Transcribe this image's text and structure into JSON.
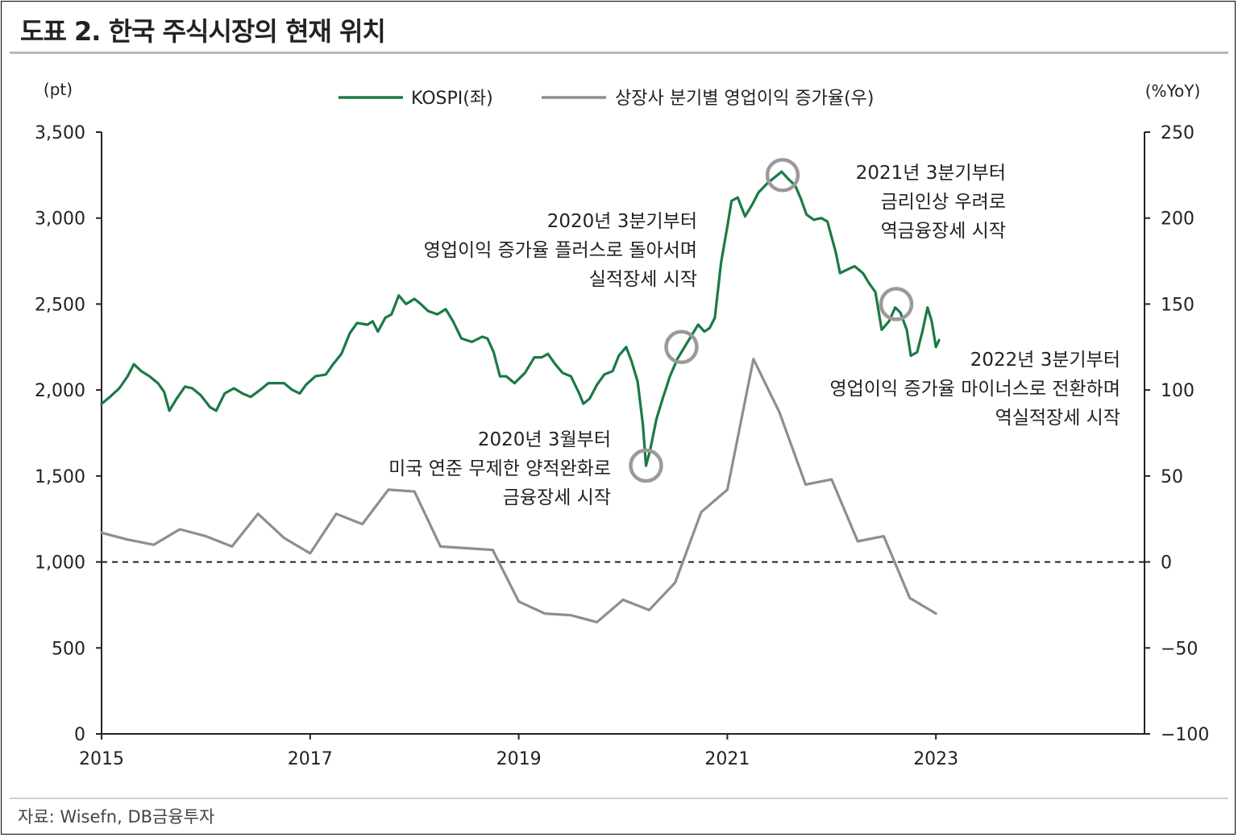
{
  "title": "도표 2. 한국 주식시장의 현재 위치",
  "source": "자료: Wisefn, DB금융투자",
  "colors": {
    "kospi": "#1a7a45",
    "earnings": "#8e8e8e",
    "circle": "#9a9a9a",
    "zero_line": "#222222"
  },
  "chart_data": {
    "type": "line",
    "left_axis": {
      "unit": "(pt)",
      "ylim": [
        0,
        3500
      ],
      "ticks": [
        0,
        500,
        1000,
        1500,
        2000,
        2500,
        3000,
        3500
      ],
      "tick_labels": [
        "0",
        "500",
        "1,000",
        "1,500",
        "2,000",
        "2,500",
        "3,000",
        "3,500"
      ]
    },
    "right_axis": {
      "unit": "(%YoY)",
      "ylim": [
        -100,
        250
      ],
      "ticks": [
        -100,
        -50,
        0,
        50,
        100,
        150,
        200,
        250
      ],
      "tick_labels": [
        "−100",
        "−50",
        "0",
        "50",
        "100",
        "150",
        "200",
        "250"
      ]
    },
    "x_axis": {
      "xlim": [
        2015,
        2025
      ],
      "ticks": [
        2015,
        2017,
        2019,
        2021,
        2023
      ],
      "tick_labels": [
        "2015",
        "2017",
        "2019",
        "2021",
        "2023"
      ]
    },
    "legend": {
      "placement": "top-center",
      "items": [
        "KOSPI(좌)",
        "상장사 분기별 영업이익 증가율(우)"
      ]
    },
    "series": [
      {
        "name": "KOSPI(좌)",
        "axis": "left",
        "points": [
          [
            2015.0,
            1920
          ],
          [
            2015.08,
            1960
          ],
          [
            2015.17,
            2010
          ],
          [
            2015.25,
            2080
          ],
          [
            2015.31,
            2150
          ],
          [
            2015.38,
            2110
          ],
          [
            2015.46,
            2080
          ],
          [
            2015.54,
            2040
          ],
          [
            2015.6,
            1990
          ],
          [
            2015.65,
            1880
          ],
          [
            2015.72,
            1950
          ],
          [
            2015.8,
            2020
          ],
          [
            2015.87,
            2010
          ],
          [
            2015.95,
            1970
          ],
          [
            2016.04,
            1900
          ],
          [
            2016.1,
            1880
          ],
          [
            2016.18,
            1980
          ],
          [
            2016.27,
            2010
          ],
          [
            2016.35,
            1980
          ],
          [
            2016.43,
            1960
          ],
          [
            2016.52,
            2000
          ],
          [
            2016.6,
            2040
          ],
          [
            2016.68,
            2040
          ],
          [
            2016.75,
            2040
          ],
          [
            2016.83,
            2000
          ],
          [
            2016.9,
            1980
          ],
          [
            2016.96,
            2030
          ],
          [
            2017.05,
            2080
          ],
          [
            2017.15,
            2090
          ],
          [
            2017.22,
            2150
          ],
          [
            2017.3,
            2210
          ],
          [
            2017.38,
            2330
          ],
          [
            2017.45,
            2390
          ],
          [
            2017.55,
            2380
          ],
          [
            2017.6,
            2400
          ],
          [
            2017.65,
            2340
          ],
          [
            2017.72,
            2420
          ],
          [
            2017.78,
            2440
          ],
          [
            2017.85,
            2550
          ],
          [
            2017.92,
            2500
          ],
          [
            2018.0,
            2530
          ],
          [
            2018.06,
            2500
          ],
          [
            2018.13,
            2460
          ],
          [
            2018.22,
            2440
          ],
          [
            2018.3,
            2470
          ],
          [
            2018.37,
            2400
          ],
          [
            2018.45,
            2300
          ],
          [
            2018.55,
            2280
          ],
          [
            2018.65,
            2310
          ],
          [
            2018.7,
            2300
          ],
          [
            2018.76,
            2220
          ],
          [
            2018.82,
            2080
          ],
          [
            2018.88,
            2080
          ],
          [
            2018.96,
            2040
          ],
          [
            2019.06,
            2100
          ],
          [
            2019.15,
            2190
          ],
          [
            2019.22,
            2190
          ],
          [
            2019.28,
            2210
          ],
          [
            2019.35,
            2150
          ],
          [
            2019.42,
            2100
          ],
          [
            2019.5,
            2080
          ],
          [
            2019.58,
            1980
          ],
          [
            2019.62,
            1920
          ],
          [
            2019.68,
            1950
          ],
          [
            2019.75,
            2030
          ],
          [
            2019.82,
            2090
          ],
          [
            2019.9,
            2110
          ],
          [
            2019.96,
            2200
          ],
          [
            2020.03,
            2250
          ],
          [
            2020.08,
            2170
          ],
          [
            2020.14,
            2050
          ],
          [
            2020.19,
            1800
          ],
          [
            2020.22,
            1560
          ],
          [
            2020.26,
            1650
          ],
          [
            2020.32,
            1830
          ],
          [
            2020.38,
            1950
          ],
          [
            2020.45,
            2080
          ],
          [
            2020.52,
            2180
          ],
          [
            2020.6,
            2260
          ],
          [
            2020.66,
            2320
          ],
          [
            2020.72,
            2380
          ],
          [
            2020.78,
            2340
          ],
          [
            2020.83,
            2360
          ],
          [
            2020.88,
            2420
          ],
          [
            2020.94,
            2740
          ],
          [
            2021.0,
            2950
          ],
          [
            2021.04,
            3100
          ],
          [
            2021.1,
            3120
          ],
          [
            2021.17,
            3010
          ],
          [
            2021.24,
            3080
          ],
          [
            2021.3,
            3150
          ],
          [
            2021.38,
            3200
          ],
          [
            2021.44,
            3230
          ],
          [
            2021.52,
            3270
          ],
          [
            2021.58,
            3230
          ],
          [
            2021.65,
            3190
          ],
          [
            2021.7,
            3120
          ],
          [
            2021.76,
            3020
          ],
          [
            2021.83,
            2990
          ],
          [
            2021.9,
            3000
          ],
          [
            2021.96,
            2980
          ],
          [
            2022.04,
            2800
          ],
          [
            2022.08,
            2680
          ],
          [
            2022.15,
            2700
          ],
          [
            2022.22,
            2720
          ],
          [
            2022.3,
            2680
          ],
          [
            2022.36,
            2620
          ],
          [
            2022.42,
            2570
          ],
          [
            2022.48,
            2350
          ],
          [
            2022.55,
            2400
          ],
          [
            2022.61,
            2480
          ],
          [
            2022.66,
            2450
          ],
          [
            2022.72,
            2350
          ],
          [
            2022.76,
            2200
          ],
          [
            2022.82,
            2220
          ],
          [
            2022.87,
            2340
          ],
          [
            2022.92,
            2480
          ],
          [
            2022.96,
            2400
          ],
          [
            2023.0,
            2250
          ],
          [
            2023.03,
            2290
          ]
        ]
      },
      {
        "name": "상장사 분기별 영업이익 증가율(우)",
        "axis": "right",
        "points": [
          [
            2015.0,
            17
          ],
          [
            2015.25,
            13
          ],
          [
            2015.5,
            10
          ],
          [
            2015.75,
            19
          ],
          [
            2016.0,
            15
          ],
          [
            2016.25,
            9
          ],
          [
            2016.5,
            28
          ],
          [
            2016.75,
            14
          ],
          [
            2017.0,
            5
          ],
          [
            2017.25,
            28
          ],
          [
            2017.5,
            22
          ],
          [
            2017.75,
            42
          ],
          [
            2018.0,
            41
          ],
          [
            2018.25,
            9
          ],
          [
            2018.5,
            8
          ],
          [
            2018.75,
            7
          ],
          [
            2019.0,
            -23
          ],
          [
            2019.25,
            -30
          ],
          [
            2019.5,
            -31
          ],
          [
            2019.75,
            -35
          ],
          [
            2020.0,
            -22
          ],
          [
            2020.25,
            -28
          ],
          [
            2020.5,
            -12
          ],
          [
            2020.75,
            29
          ],
          [
            2021.0,
            42
          ],
          [
            2021.25,
            118
          ],
          [
            2021.5,
            87
          ],
          [
            2021.75,
            45
          ],
          [
            2022.0,
            48
          ],
          [
            2022.25,
            12
          ],
          [
            2022.5,
            15
          ],
          [
            2022.75,
            -21
          ],
          [
            2023.0,
            -30
          ]
        ]
      }
    ],
    "annotations": [
      {
        "lines": [
          "2020년 3월부터",
          "미국 연준 무제한 양적완화로",
          "금융장세 시작"
        ],
        "circle_at": [
          2020.22,
          1560
        ]
      },
      {
        "lines": [
          "2020년 3분기부터",
          "영업이익 증가율 플러스로 돌아서며",
          "실적장세 시작"
        ],
        "circle_at": [
          2020.56,
          2250
        ]
      },
      {
        "lines": [
          "2021년 3분기부터",
          "금리인상 우려로",
          "역금융장세 시작"
        ],
        "circle_at": [
          2021.53,
          3250
        ]
      },
      {
        "lines": [
          "2022년 3분기부터",
          "영업이익 증가율 마이너스로 전환하며",
          "역실적장세 시작"
        ],
        "circle_at": [
          2022.62,
          2500
        ]
      }
    ]
  }
}
